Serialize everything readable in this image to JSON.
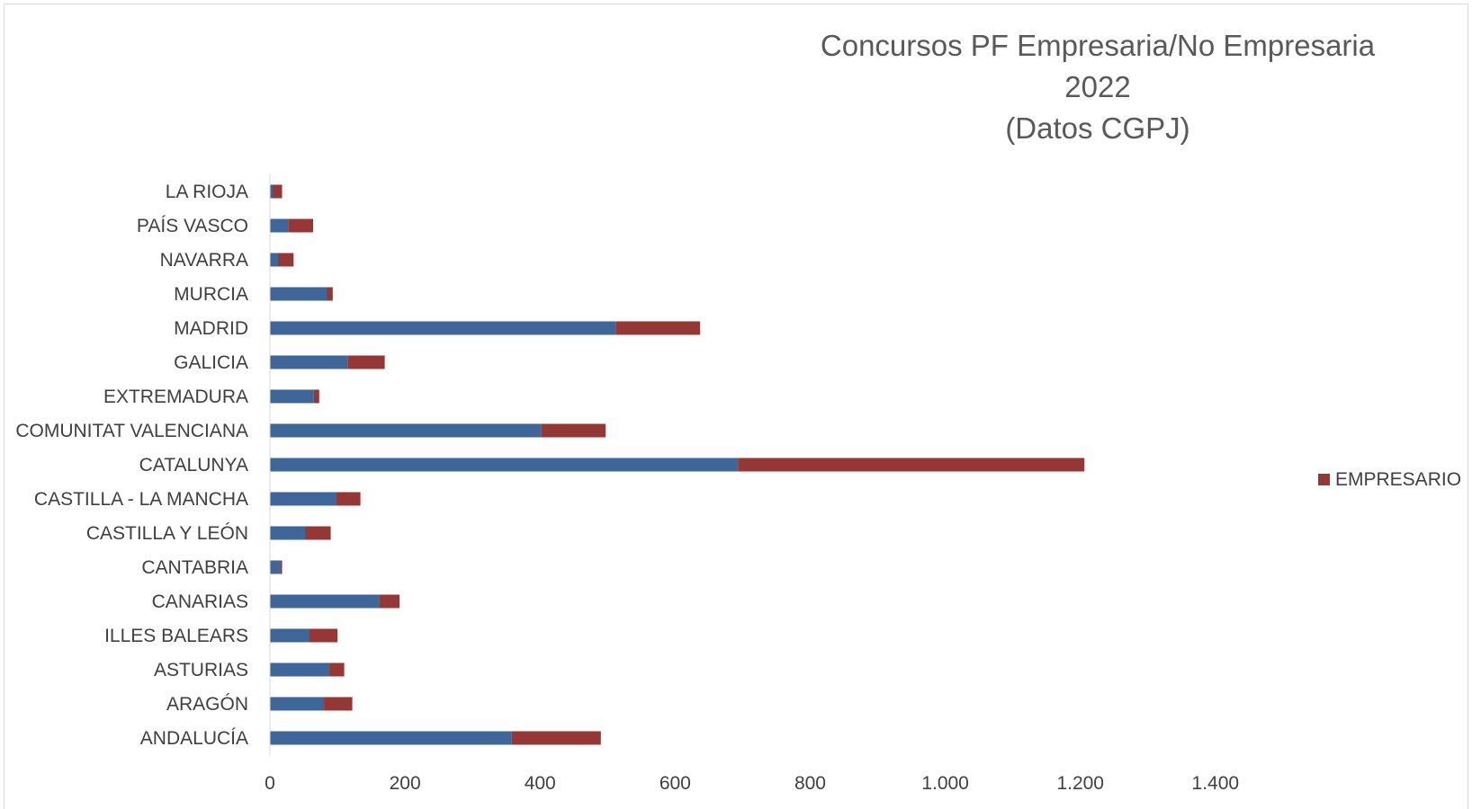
{
  "chart_data": {
    "type": "bar",
    "orientation": "horizontal",
    "stacked": true,
    "title": [
      "Concursos PF Empresaria/No Empresaria",
      "2022",
      "(Datos CGPJ)"
    ],
    "categories": [
      "ANDALUCÍA",
      "ARAGÓN",
      "ASTURIAS",
      "ILLES BALEARS",
      "CANARIAS",
      "CANTABRIA",
      "CASTILLA Y LEÓN",
      "CASTILLA - LA MANCHA",
      "CATALUNYA",
      "COMUNITAT VALENCIANA",
      "EXTREMADURA",
      "GALICIA",
      "MADRID",
      "MURCIA",
      "NAVARRA",
      "PAÍS VASCO",
      "LA RIOJA"
    ],
    "series": [
      {
        "values": [
          358,
          80,
          88,
          58,
          162,
          15,
          52,
          98,
          693,
          402,
          65,
          115,
          512,
          84,
          12,
          27,
          4
        ],
        "color": "#3e6698"
      },
      {
        "name": "EMPRESARIO",
        "values": [
          132,
          42,
          22,
          42,
          30,
          3,
          38,
          36,
          513,
          95,
          8,
          55,
          125,
          9,
          23,
          37,
          14
        ],
        "color": "#953735"
      }
    ],
    "xlim": [
      0,
      1600
    ],
    "x_ticks": [
      "0",
      "200",
      "400",
      "600",
      "800",
      "1.000",
      "1.200",
      "1.400"
    ],
    "x_tick_values": [
      0,
      200,
      400,
      600,
      800,
      1000,
      1200,
      1400
    ],
    "legend": {
      "position": "right",
      "entries": [
        "EMPRESARIO"
      ]
    },
    "grid": false
  }
}
